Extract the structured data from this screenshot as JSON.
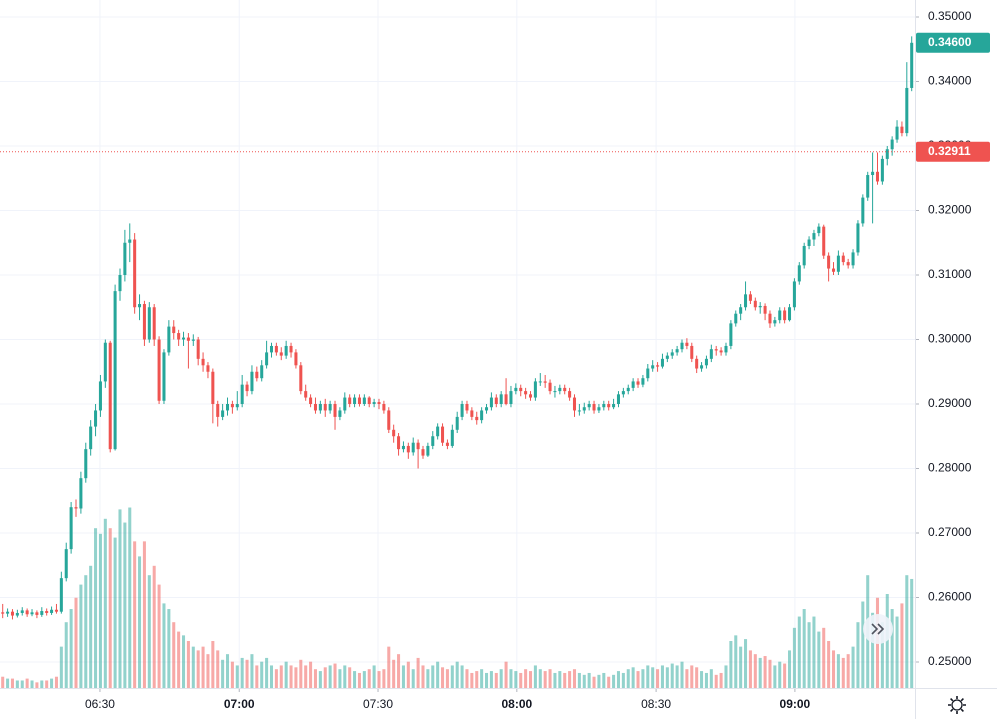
{
  "chart_data": {
    "type": "candlestick",
    "up_color": "#26a69a",
    "down_color": "#ef5350",
    "ylim": [
      0.25,
      0.35
    ],
    "yticks": [
      {
        "value": 0.25,
        "label": "0.25000"
      },
      {
        "value": 0.26,
        "label": "0.26000"
      },
      {
        "value": 0.27,
        "label": "0.27000"
      },
      {
        "value": 0.28,
        "label": "0.28000"
      },
      {
        "value": 0.29,
        "label": "0.29000"
      },
      {
        "value": 0.3,
        "label": "0.30000"
      },
      {
        "value": 0.31,
        "label": "0.31000"
      },
      {
        "value": 0.32,
        "label": "0.32000"
      },
      {
        "value": 0.33,
        "label": "0.33000"
      },
      {
        "value": 0.34,
        "label": "0.34000"
      },
      {
        "value": 0.35,
        "label": "0.35000"
      }
    ],
    "xticks": [
      {
        "value": 19.9,
        "label": "06:30"
      },
      {
        "value": 48.4,
        "label": "07:00"
      },
      {
        "value": 76.8,
        "label": "07:30"
      },
      {
        "value": 105.2,
        "label": "08:00"
      },
      {
        "value": 133.7,
        "label": "08:30"
      },
      {
        "value": 162.1,
        "label": "09:00"
      }
    ],
    "xlim": [
      0,
      186
    ],
    "vlim": [
      0,
      100
    ],
    "grid": true,
    "last_price": {
      "value": 0.346,
      "label": "0.34600"
    },
    "reference_price": {
      "value": 0.32911,
      "label": "0.32911"
    },
    "candles": [
      [
        0.2577,
        0.259,
        0.2568,
        0.2575,
        6
      ],
      [
        0.2575,
        0.2583,
        0.257,
        0.2578,
        5
      ],
      [
        0.2578,
        0.2582,
        0.2566,
        0.2572,
        5
      ],
      [
        0.2572,
        0.2581,
        0.2569,
        0.2576,
        4
      ],
      [
        0.2576,
        0.2585,
        0.2572,
        0.258,
        4
      ],
      [
        0.258,
        0.2583,
        0.257,
        0.2574,
        5
      ],
      [
        0.2574,
        0.2582,
        0.2571,
        0.2577,
        4
      ],
      [
        0.2577,
        0.258,
        0.2568,
        0.2573,
        3
      ],
      [
        0.2573,
        0.2585,
        0.257,
        0.2579,
        4
      ],
      [
        0.2579,
        0.2583,
        0.2572,
        0.2576,
        4
      ],
      [
        0.2576,
        0.2586,
        0.2573,
        0.2581,
        5
      ],
      [
        0.2581,
        0.259,
        0.2575,
        0.2578,
        6
      ],
      [
        0.2578,
        0.264,
        0.2575,
        0.263,
        22
      ],
      [
        0.263,
        0.2685,
        0.2625,
        0.2675,
        35
      ],
      [
        0.2675,
        0.2748,
        0.2668,
        0.274,
        42
      ],
      [
        0.274,
        0.2752,
        0.2725,
        0.2738,
        48
      ],
      [
        0.2738,
        0.2795,
        0.273,
        0.2785,
        55
      ],
      [
        0.2785,
        0.284,
        0.2778,
        0.283,
        60
      ],
      [
        0.283,
        0.2875,
        0.282,
        0.2865,
        65
      ],
      [
        0.2865,
        0.29,
        0.285,
        0.289,
        85
      ],
      [
        0.289,
        0.2945,
        0.288,
        0.2935,
        82
      ],
      [
        0.2935,
        0.3,
        0.2925,
        0.2995,
        90
      ],
      [
        0.2995,
        0.2998,
        0.2825,
        0.283,
        85
      ],
      [
        0.283,
        0.3085,
        0.2828,
        0.3075,
        80
      ],
      [
        0.3075,
        0.311,
        0.306,
        0.31,
        95
      ],
      [
        0.31,
        0.317,
        0.309,
        0.315,
        88
      ],
      [
        0.315,
        0.318,
        0.312,
        0.3155,
        96
      ],
      [
        0.3155,
        0.3165,
        0.304,
        0.305,
        78
      ],
      [
        0.305,
        0.307,
        0.303,
        0.3055,
        70
      ],
      [
        0.3055,
        0.306,
        0.299,
        0.3,
        78
      ],
      [
        0.3,
        0.3058,
        0.2995,
        0.305,
        60
      ],
      [
        0.305,
        0.3055,
        0.299,
        0.3,
        65
      ],
      [
        0.3,
        0.3005,
        0.29,
        0.2905,
        55
      ],
      [
        0.2905,
        0.2985,
        0.29,
        0.298,
        45
      ],
      [
        0.298,
        0.303,
        0.2975,
        0.302,
        42
      ],
      [
        0.302,
        0.303,
        0.3,
        0.301,
        35
      ],
      [
        0.301,
        0.3015,
        0.299,
        0.3,
        30
      ],
      [
        0.3,
        0.3012,
        0.299,
        0.3003,
        28
      ],
      [
        0.3003,
        0.301,
        0.2955,
        0.2998,
        25
      ],
      [
        0.2998,
        0.3008,
        0.299,
        0.3,
        22
      ],
      [
        0.3,
        0.3004,
        0.296,
        0.297,
        20
      ],
      [
        0.297,
        0.298,
        0.295,
        0.296,
        22
      ],
      [
        0.296,
        0.2965,
        0.294,
        0.295,
        18
      ],
      [
        0.295,
        0.2955,
        0.287,
        0.29,
        25
      ],
      [
        0.29,
        0.2905,
        0.2865,
        0.288,
        20
      ],
      [
        0.288,
        0.29,
        0.2875,
        0.289,
        15
      ],
      [
        0.289,
        0.291,
        0.2882,
        0.29,
        18
      ],
      [
        0.29,
        0.2905,
        0.2885,
        0.2895,
        14
      ],
      [
        0.2895,
        0.292,
        0.289,
        0.29,
        12
      ],
      [
        0.29,
        0.2945,
        0.2895,
        0.293,
        16
      ],
      [
        0.293,
        0.2935,
        0.2912,
        0.292,
        15
      ],
      [
        0.292,
        0.296,
        0.2915,
        0.295,
        18
      ],
      [
        0.295,
        0.2958,
        0.2935,
        0.294,
        12
      ],
      [
        0.294,
        0.2968,
        0.2935,
        0.296,
        14
      ],
      [
        0.296,
        0.2998,
        0.2955,
        0.298,
        16
      ],
      [
        0.298,
        0.2995,
        0.2972,
        0.299,
        12
      ],
      [
        0.299,
        0.2995,
        0.2975,
        0.298,
        10
      ],
      [
        0.298,
        0.2988,
        0.2968,
        0.2975,
        12
      ],
      [
        0.2975,
        0.2998,
        0.297,
        0.299,
        14
      ],
      [
        0.299,
        0.2995,
        0.2972,
        0.298,
        12
      ],
      [
        0.298,
        0.2985,
        0.2955,
        0.296,
        11
      ],
      [
        0.296,
        0.2965,
        0.2915,
        0.292,
        15
      ],
      [
        0.292,
        0.293,
        0.2905,
        0.291,
        12
      ],
      [
        0.291,
        0.2915,
        0.2895,
        0.29,
        14
      ],
      [
        0.29,
        0.291,
        0.2885,
        0.289,
        10
      ],
      [
        0.289,
        0.2905,
        0.2885,
        0.29,
        9
      ],
      [
        0.29,
        0.2908,
        0.288,
        0.289,
        11
      ],
      [
        0.289,
        0.2905,
        0.2885,
        0.29,
        12
      ],
      [
        0.29,
        0.2905,
        0.286,
        0.288,
        13
      ],
      [
        0.288,
        0.2895,
        0.2875,
        0.289,
        10
      ],
      [
        0.289,
        0.2918,
        0.2885,
        0.291,
        12
      ],
      [
        0.291,
        0.2915,
        0.2895,
        0.29,
        11
      ],
      [
        0.29,
        0.2915,
        0.2895,
        0.291,
        9
      ],
      [
        0.291,
        0.2915,
        0.2896,
        0.29,
        8
      ],
      [
        0.29,
        0.2915,
        0.2897,
        0.291,
        9
      ],
      [
        0.291,
        0.2912,
        0.2895,
        0.29,
        10
      ],
      [
        0.29,
        0.2908,
        0.2895,
        0.2903,
        12
      ],
      [
        0.2903,
        0.2908,
        0.2892,
        0.29,
        9
      ],
      [
        0.29,
        0.2905,
        0.2885,
        0.289,
        10
      ],
      [
        0.289,
        0.2895,
        0.2855,
        0.286,
        22
      ],
      [
        0.286,
        0.2868,
        0.284,
        0.285,
        15
      ],
      [
        0.285,
        0.2855,
        0.282,
        0.283,
        18
      ],
      [
        0.283,
        0.2842,
        0.2825,
        0.2835,
        12
      ],
      [
        0.2835,
        0.284,
        0.2815,
        0.2825,
        14
      ],
      [
        0.2825,
        0.2848,
        0.282,
        0.284,
        10
      ],
      [
        0.284,
        0.2845,
        0.28,
        0.283,
        16
      ],
      [
        0.283,
        0.2835,
        0.2815,
        0.282,
        12
      ],
      [
        0.282,
        0.284,
        0.2818,
        0.2835,
        10
      ],
      [
        0.2835,
        0.2858,
        0.283,
        0.285,
        12
      ],
      [
        0.285,
        0.287,
        0.2845,
        0.2865,
        14
      ],
      [
        0.2865,
        0.287,
        0.2835,
        0.284,
        11
      ],
      [
        0.284,
        0.2845,
        0.283,
        0.2835,
        10
      ],
      [
        0.2835,
        0.2868,
        0.2832,
        0.286,
        12
      ],
      [
        0.286,
        0.2888,
        0.2855,
        0.288,
        14
      ],
      [
        0.288,
        0.2905,
        0.2875,
        0.29,
        12
      ],
      [
        0.29,
        0.2905,
        0.2885,
        0.289,
        10
      ],
      [
        0.289,
        0.2895,
        0.2875,
        0.288,
        8
      ],
      [
        0.288,
        0.2888,
        0.2868,
        0.2875,
        9
      ],
      [
        0.2875,
        0.2895,
        0.287,
        0.289,
        10
      ],
      [
        0.289,
        0.29,
        0.2885,
        0.2895,
        8
      ],
      [
        0.2895,
        0.2918,
        0.289,
        0.291,
        9
      ],
      [
        0.291,
        0.2915,
        0.2895,
        0.29,
        8
      ],
      [
        0.29,
        0.292,
        0.2895,
        0.2915,
        10
      ],
      [
        0.2915,
        0.294,
        0.2898,
        0.29,
        14
      ],
      [
        0.29,
        0.2928,
        0.2895,
        0.292,
        10
      ],
      [
        0.292,
        0.2932,
        0.2915,
        0.2925,
        9
      ],
      [
        0.2925,
        0.293,
        0.2912,
        0.292,
        8
      ],
      [
        0.292,
        0.2925,
        0.2908,
        0.2915,
        10
      ],
      [
        0.2915,
        0.292,
        0.2905,
        0.291,
        9
      ],
      [
        0.291,
        0.294,
        0.2905,
        0.2935,
        12
      ],
      [
        0.2935,
        0.2948,
        0.2928,
        0.2935,
        10
      ],
      [
        0.2935,
        0.2945,
        0.2925,
        0.2933,
        9
      ],
      [
        0.2933,
        0.2938,
        0.2915,
        0.292,
        10
      ],
      [
        0.292,
        0.2928,
        0.291,
        0.292,
        8
      ],
      [
        0.292,
        0.293,
        0.2915,
        0.2925,
        9
      ],
      [
        0.2925,
        0.293,
        0.2915,
        0.292,
        8
      ],
      [
        0.292,
        0.2925,
        0.2905,
        0.291,
        9
      ],
      [
        0.291,
        0.2915,
        0.288,
        0.289,
        10
      ],
      [
        0.289,
        0.29,
        0.2882,
        0.289,
        8
      ],
      [
        0.289,
        0.2902,
        0.2885,
        0.2895,
        7
      ],
      [
        0.2895,
        0.2905,
        0.289,
        0.29,
        8
      ],
      [
        0.29,
        0.2905,
        0.2885,
        0.289,
        6
      ],
      [
        0.289,
        0.29,
        0.2886,
        0.2895,
        7
      ],
      [
        0.2895,
        0.2905,
        0.289,
        0.29,
        8
      ],
      [
        0.29,
        0.2905,
        0.289,
        0.2895,
        6
      ],
      [
        0.2895,
        0.2908,
        0.2892,
        0.29,
        7
      ],
      [
        0.29,
        0.292,
        0.2895,
        0.2915,
        9
      ],
      [
        0.2915,
        0.2925,
        0.291,
        0.292,
        8
      ],
      [
        0.292,
        0.293,
        0.2915,
        0.2925,
        10
      ],
      [
        0.2925,
        0.294,
        0.292,
        0.2935,
        11
      ],
      [
        0.2935,
        0.294,
        0.2925,
        0.293,
        9
      ],
      [
        0.293,
        0.2945,
        0.2926,
        0.294,
        10
      ],
      [
        0.294,
        0.2962,
        0.2935,
        0.2955,
        12
      ],
      [
        0.2955,
        0.2968,
        0.295,
        0.296,
        11
      ],
      [
        0.296,
        0.2965,
        0.295,
        0.2958,
        10
      ],
      [
        0.2958,
        0.2978,
        0.2955,
        0.297,
        12
      ],
      [
        0.297,
        0.298,
        0.2965,
        0.2975,
        11
      ],
      [
        0.2975,
        0.2985,
        0.297,
        0.298,
        13
      ],
      [
        0.298,
        0.299,
        0.2975,
        0.2985,
        12
      ],
      [
        0.2985,
        0.3,
        0.298,
        0.2995,
        14
      ],
      [
        0.2995,
        0.3002,
        0.2985,
        0.299,
        10
      ],
      [
        0.299,
        0.2995,
        0.2965,
        0.297,
        12
      ],
      [
        0.297,
        0.2975,
        0.2948,
        0.2955,
        11
      ],
      [
        0.2955,
        0.2965,
        0.295,
        0.296,
        9
      ],
      [
        0.296,
        0.2975,
        0.2955,
        0.297,
        8
      ],
      [
        0.297,
        0.2992,
        0.2965,
        0.2985,
        10
      ],
      [
        0.2985,
        0.299,
        0.2975,
        0.2983,
        7
      ],
      [
        0.2983,
        0.2988,
        0.2975,
        0.298,
        8
      ],
      [
        0.298,
        0.2995,
        0.2975,
        0.299,
        12
      ],
      [
        0.299,
        0.303,
        0.2985,
        0.3025,
        25
      ],
      [
        0.3025,
        0.3045,
        0.302,
        0.304,
        28
      ],
      [
        0.304,
        0.3055,
        0.303,
        0.305,
        22
      ],
      [
        0.305,
        0.309,
        0.3045,
        0.307,
        26
      ],
      [
        0.307,
        0.3075,
        0.3055,
        0.306,
        20
      ],
      [
        0.306,
        0.3065,
        0.3045,
        0.305,
        18
      ],
      [
        0.305,
        0.3058,
        0.304,
        0.3052,
        16
      ],
      [
        0.3052,
        0.3056,
        0.303,
        0.304,
        17
      ],
      [
        0.304,
        0.3045,
        0.3018,
        0.3025,
        15
      ],
      [
        0.3025,
        0.3035,
        0.302,
        0.303,
        12
      ],
      [
        0.303,
        0.305,
        0.3025,
        0.3045,
        14
      ],
      [
        0.3045,
        0.305,
        0.3025,
        0.303,
        13
      ],
      [
        0.303,
        0.3055,
        0.3028,
        0.305,
        20
      ],
      [
        0.305,
        0.3095,
        0.3045,
        0.309,
        32
      ],
      [
        0.309,
        0.312,
        0.3085,
        0.3115,
        38
      ],
      [
        0.3115,
        0.315,
        0.311,
        0.3145,
        42
      ],
      [
        0.3145,
        0.316,
        0.314,
        0.3155,
        35
      ],
      [
        0.3155,
        0.317,
        0.3145,
        0.3165,
        38
      ],
      [
        0.3165,
        0.318,
        0.316,
        0.3175,
        30
      ],
      [
        0.3175,
        0.3178,
        0.3125,
        0.313,
        32
      ],
      [
        0.313,
        0.3135,
        0.309,
        0.311,
        25
      ],
      [
        0.311,
        0.312,
        0.31,
        0.3105,
        20
      ],
      [
        0.3105,
        0.3138,
        0.31,
        0.313,
        18
      ],
      [
        0.313,
        0.3135,
        0.3115,
        0.312,
        16
      ],
      [
        0.312,
        0.3125,
        0.311,
        0.3115,
        18
      ],
      [
        0.3115,
        0.314,
        0.311,
        0.3135,
        22
      ],
      [
        0.3135,
        0.3185,
        0.313,
        0.318,
        35
      ],
      [
        0.318,
        0.3225,
        0.3175,
        0.322,
        46
      ],
      [
        0.322,
        0.326,
        0.3215,
        0.3255,
        60
      ],
      [
        0.3255,
        0.329,
        0.318,
        0.326,
        40
      ],
      [
        0.326,
        0.329,
        0.324,
        0.3245,
        48
      ],
      [
        0.3245,
        0.3285,
        0.324,
        0.328,
        35
      ],
      [
        0.328,
        0.33,
        0.327,
        0.3295,
        50
      ],
      [
        0.3295,
        0.3315,
        0.3285,
        0.331,
        42
      ],
      [
        0.331,
        0.334,
        0.3305,
        0.333,
        38
      ],
      [
        0.333,
        0.3338,
        0.3315,
        0.332,
        45
      ],
      [
        0.332,
        0.343,
        0.3315,
        0.339,
        60
      ],
      [
        0.339,
        0.347,
        0.3385,
        0.346,
        58
      ]
    ]
  }
}
